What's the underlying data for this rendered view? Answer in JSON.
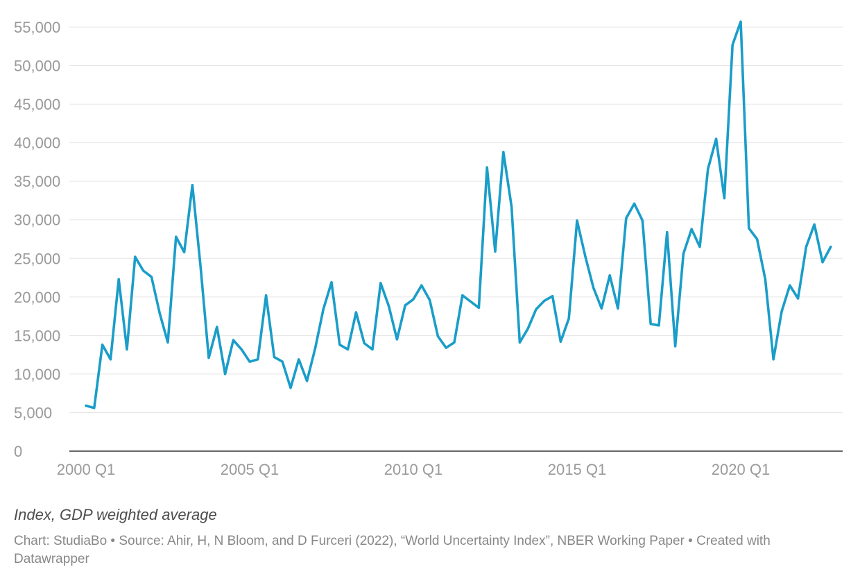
{
  "chart_data": {
    "type": "line",
    "title": "",
    "xlabel": "",
    "ylabel": "",
    "ylim": [
      0,
      55000
    ],
    "y_ticks": [
      0,
      5000,
      10000,
      15000,
      20000,
      25000,
      30000,
      35000,
      40000,
      45000,
      50000,
      55000
    ],
    "y_tick_labels": [
      "0",
      "5,000",
      "10,000",
      "15,000",
      "20,000",
      "25,000",
      "30,000",
      "35,000",
      "40,000",
      "45,000",
      "50,000",
      "55,000"
    ],
    "x_tick_labels": [
      "2000 Q1",
      "2005 Q1",
      "2010 Q1",
      "2015 Q1",
      "2020 Q1"
    ],
    "grid": true,
    "x_start": "2000 Q1",
    "x_end": "2022 Q4",
    "series": [
      {
        "color": "#1a9dc9",
        "values": [
          5900,
          5600,
          13800,
          11900,
          22300,
          13200,
          25200,
          23400,
          22600,
          17900,
          14100,
          27800,
          25800,
          34500,
          23900,
          12100,
          16100,
          10000,
          14400,
          13200,
          11600,
          11900,
          20200,
          12200,
          11600,
          8200,
          11900,
          9100,
          13300,
          18400,
          21900,
          13800,
          13200,
          18000,
          14000,
          13200,
          21800,
          18800,
          14500,
          18900,
          19700,
          21500,
          19600,
          14900,
          13400,
          14100,
          20200,
          19400,
          18600,
          36800,
          25900,
          38800,
          31700,
          14100,
          15900,
          18400,
          19500,
          20100,
          14200,
          17200,
          29900,
          25300,
          21200,
          18500,
          22800,
          18500,
          30200,
          32100,
          29900,
          16500,
          16300,
          28400,
          13600,
          25600,
          28800,
          26500,
          36600,
          40500,
          32800,
          52700,
          55700,
          28900,
          27500,
          22300,
          11900,
          18100,
          21500,
          19800,
          26500,
          29400,
          24500,
          26500
        ]
      }
    ]
  },
  "notes": "Index, GDP weighted average",
  "footer": "Chart: StudiaBo • Source: Ahir, H, N Bloom, and D Furceri (2022), “World Uncertainty Index”, NBER Working Paper • Created with Datawrapper"
}
